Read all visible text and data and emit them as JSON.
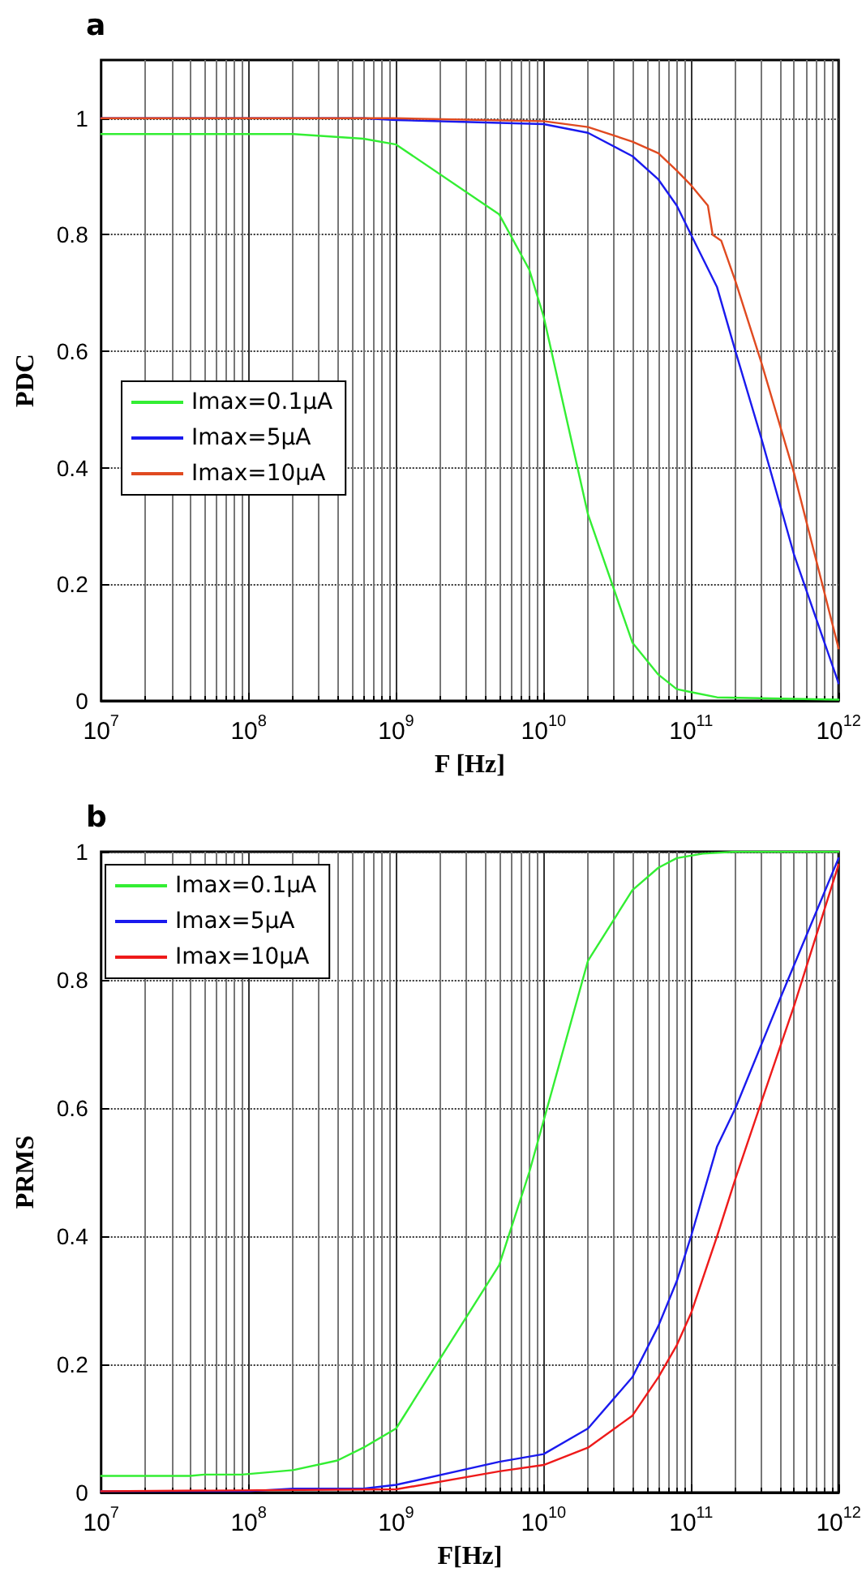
{
  "chart_data": [
    {
      "type": "line",
      "title": "a",
      "xlabel": "F [Hz]",
      "ylabel": "PDC",
      "log": "x",
      "grid": true,
      "legend": "left",
      "marker": "none",
      "line_style": "solid",
      "xlim": [
        10000000,
        1000000000000
      ],
      "ylim": [
        0,
        1.1
      ],
      "xticks": [
        {
          "value": 10000000,
          "label": "10$^{7}$"
        },
        {
          "value": 100000000,
          "label": "10$^{8}$"
        },
        {
          "value": 1000000000,
          "label": "10$^{9}$"
        },
        {
          "value": 10000000000,
          "label": "10$^{10}$"
        },
        {
          "value": 100000000000,
          "label": "10$^{11}$"
        },
        {
          "value": 1000000000000,
          "label": "10$^{12}$"
        }
      ],
      "yticks": [
        0,
        0.2,
        0.4,
        0.6,
        0.8,
        1
      ],
      "series": [
        {
          "name": "Imax=0.1µA",
          "color": "#33ee33",
          "x": [
            10000000.0,
            200000000.0,
            600000000.0,
            1000000000.0,
            5000000000.0,
            8000000000.0,
            10000000000.0,
            20000000000.0,
            40000000000.0,
            60000000000.0,
            80000000000.0,
            100000000000.0,
            150000000000.0,
            1000000000000.0
          ],
          "values": [
            0.973,
            0.973,
            0.965,
            0.955,
            0.835,
            0.74,
            0.66,
            0.32,
            0.1,
            0.045,
            0.02,
            0.015,
            0.006,
            0.002
          ]
        },
        {
          "name": "Imax=5µA",
          "color": "#1a1aee",
          "x": [
            10000000.0,
            600000000.0,
            1000000000.0,
            10000000000.0,
            20000000000.0,
            40000000000.0,
            60000000000.0,
            80000000000.0,
            100000000000.0,
            150000000000.0,
            200000000000.0,
            300000000000.0,
            500000000000.0,
            1000000000000.0
          ],
          "values": [
            1,
            1,
            0.997,
            0.99,
            0.975,
            0.935,
            0.895,
            0.85,
            0.8,
            0.71,
            0.6,
            0.45,
            0.25,
            0.03
          ]
        },
        {
          "name": "Imax=10µA",
          "color": "#e04a20",
          "x": [
            10000000.0,
            1000000000.0,
            10000000000.0,
            20000000000.0,
            40000000000.0,
            60000000000.0,
            80000000000.0,
            100000000000.0,
            130000000000.0,
            140000000000.0,
            160000000000.0,
            200000000000.0,
            300000000000.0,
            500000000000.0,
            1000000000000.0
          ],
          "values": [
            1,
            1,
            0.995,
            0.985,
            0.96,
            0.94,
            0.91,
            0.885,
            0.85,
            0.8,
            0.79,
            0.72,
            0.58,
            0.39,
            0.09
          ]
        }
      ]
    },
    {
      "type": "line",
      "title": "b",
      "xlabel": "F[Hz]",
      "ylabel": "PRMS",
      "log": "x",
      "grid": true,
      "legend": "top left",
      "marker": "none",
      "line_style": "solid",
      "xlim": [
        10000000,
        1000000000000
      ],
      "ylim": [
        0,
        1
      ],
      "xticks": [
        {
          "value": 10000000,
          "label": "10$^{7}$"
        },
        {
          "value": 100000000,
          "label": "10$^{8}$"
        },
        {
          "value": 1000000000,
          "label": "10$^{9}$"
        },
        {
          "value": 10000000000,
          "label": "10$^{10}$"
        },
        {
          "value": 100000000000,
          "label": "10$^{11}$"
        },
        {
          "value": 1000000000000,
          "label": "10$^{12}$"
        }
      ],
      "yticks": [
        0,
        0.2,
        0.4,
        0.6,
        0.8,
        1
      ],
      "series": [
        {
          "name": "Imax=0.1µA",
          "color": "#33ee33",
          "x": [
            10000000.0,
            40000000.0,
            50000000.0,
            90000000.0,
            200000000.0,
            400000000.0,
            600000000.0,
            1000000000.0,
            2000000000.0,
            5000000000.0,
            8000000000.0,
            10000000000.0,
            20000000000.0,
            40000000000.0,
            60000000000.0,
            80000000000.0,
            120000000000.0,
            200000000000.0,
            1000000000000.0
          ],
          "values": [
            0.026,
            0.026,
            0.028,
            0.028,
            0.035,
            0.05,
            0.07,
            0.1,
            0.21,
            0.355,
            0.5,
            0.58,
            0.83,
            0.94,
            0.975,
            0.99,
            0.997,
            1,
            1
          ]
        },
        {
          "name": "Imax=5µA",
          "color": "#1a1aee",
          "x": [
            10000000.0,
            100000000.0,
            200000000.0,
            600000000.0,
            1000000000.0,
            5000000000.0,
            10000000000.0,
            20000000000.0,
            40000000000.0,
            60000000000.0,
            80000000000.0,
            100000000000.0,
            150000000000.0,
            200000000000.0,
            400000000000.0,
            1000000000000.0
          ],
          "values": [
            0.002,
            0.002,
            0.006,
            0.006,
            0.012,
            0.048,
            0.06,
            0.1,
            0.18,
            0.26,
            0.33,
            0.4,
            0.54,
            0.6,
            0.77,
            0.99
          ]
        },
        {
          "name": "Imax=10µA",
          "color": "#ee1a1a",
          "x": [
            10000000.0,
            1000000000.0,
            5000000000.0,
            10000000000.0,
            20000000000.0,
            40000000000.0,
            60000000000.0,
            80000000000.0,
            100000000000.0,
            150000000000.0,
            200000000000.0,
            300000000000.0,
            500000000000.0,
            1000000000000.0
          ],
          "values": [
            0.002,
            0.005,
            0.033,
            0.043,
            0.07,
            0.12,
            0.18,
            0.23,
            0.28,
            0.4,
            0.49,
            0.61,
            0.76,
            0.98
          ]
        }
      ]
    }
  ]
}
